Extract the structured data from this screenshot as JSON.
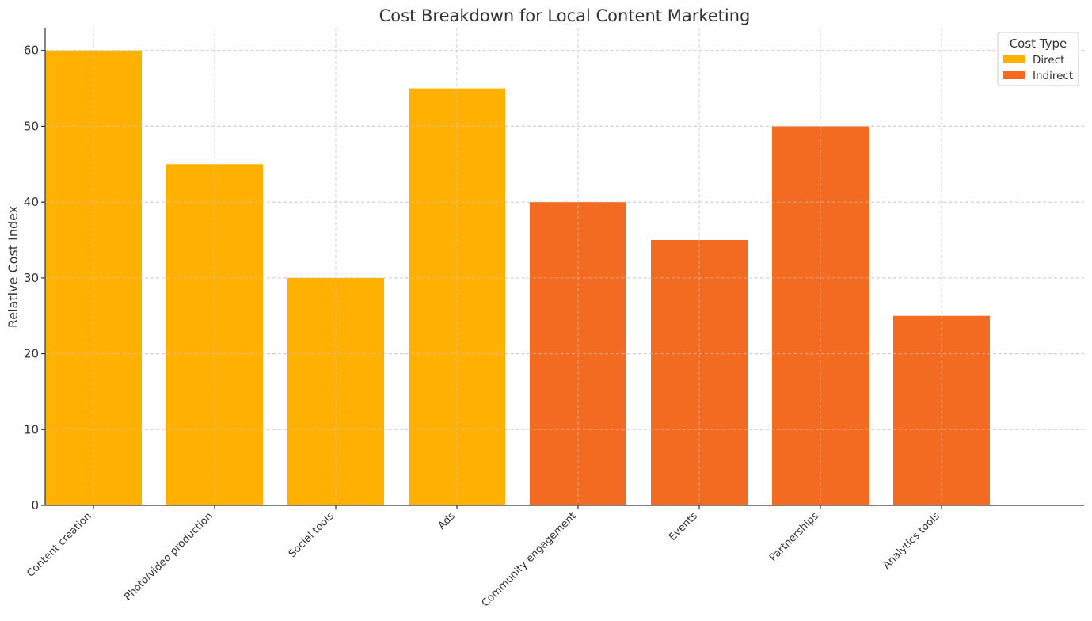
{
  "chart_data": {
    "type": "bar",
    "title": "Cost Breakdown for Local Content Marketing",
    "xlabel": "",
    "ylabel": "Relative Cost Index",
    "ylim": [
      0,
      63
    ],
    "yticks": [
      0,
      10,
      20,
      30,
      40,
      50,
      60
    ],
    "grid": true,
    "categories": [
      "Content creation",
      "Photo/video production",
      "Social tools",
      "Ads",
      "Community engagement",
      "Events",
      "Partnerships",
      "Analytics tools"
    ],
    "values": [
      60,
      45,
      30,
      55,
      40,
      35,
      50,
      25
    ],
    "cost_type": [
      "Direct",
      "Direct",
      "Direct",
      "Direct",
      "Indirect",
      "Indirect",
      "Indirect",
      "Indirect"
    ],
    "legend": {
      "title": "Cost Type",
      "position": "top-right",
      "entries": [
        {
          "label": "Direct",
          "color": "#FFB000"
        },
        {
          "label": "Indirect",
          "color": "#F26B21"
        }
      ]
    }
  }
}
